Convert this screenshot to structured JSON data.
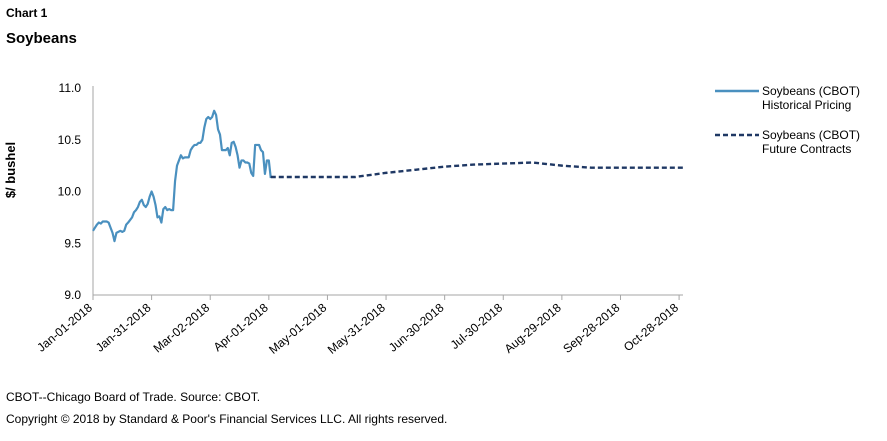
{
  "header": {
    "chart_label": "Chart 1",
    "title": "Soybeans"
  },
  "footer": {
    "source": "CBOT--Chicago Board of Trade. Source: CBOT.",
    "copyright": "Copyright © 2018 by Standard & Poor's Financial Services LLC. All rights reserved."
  },
  "colors": {
    "historical": "#4a90bf",
    "future": "#1f3864",
    "axis": "#a6a6a6"
  },
  "chart_data": {
    "type": "line",
    "title": "Soybeans",
    "ylabel": "$/ bushel",
    "xlabel": "",
    "ylim": [
      9.0,
      11.0
    ],
    "yticks": [
      "9.0",
      "9.5",
      "10.0",
      "10.5",
      "11.0"
    ],
    "xticks": [
      "Jan-01-2018",
      "Jan-31-2018",
      "Mar-02-2018",
      "Apr-01-2018",
      "May-01-2018",
      "May-31-2018",
      "Jun-30-2018",
      "Jul-30-2018",
      "Aug-29-2018",
      "Sep-28-2018",
      "Oct-28-2018"
    ],
    "grid": false,
    "legend": "right",
    "series": [
      {
        "name": "Soybeans (CBOT) Historical Pricing",
        "style": "solid",
        "points": [
          [
            "2018-01-01",
            9.62
          ],
          [
            "2018-01-02",
            9.65
          ],
          [
            "2018-01-03",
            9.68
          ],
          [
            "2018-01-04",
            9.7
          ],
          [
            "2018-01-05",
            9.69
          ],
          [
            "2018-01-06",
            9.71
          ],
          [
            "2018-01-08",
            9.71
          ],
          [
            "2018-01-09",
            9.7
          ],
          [
            "2018-01-10",
            9.65
          ],
          [
            "2018-01-11",
            9.6
          ],
          [
            "2018-01-12",
            9.52
          ],
          [
            "2018-01-13",
            9.6
          ],
          [
            "2018-01-15",
            9.62
          ],
          [
            "2018-01-16",
            9.61
          ],
          [
            "2018-01-17",
            9.62
          ],
          [
            "2018-01-18",
            9.68
          ],
          [
            "2018-01-19",
            9.7
          ],
          [
            "2018-01-21",
            9.75
          ],
          [
            "2018-01-22",
            9.8
          ],
          [
            "2018-01-23",
            9.82
          ],
          [
            "2018-01-24",
            9.85
          ],
          [
            "2018-01-25",
            9.9
          ],
          [
            "2018-01-26",
            9.92
          ],
          [
            "2018-01-27",
            9.87
          ],
          [
            "2018-01-28",
            9.85
          ],
          [
            "2018-01-29",
            9.88
          ],
          [
            "2018-01-30",
            9.95
          ],
          [
            "2018-01-31",
            10.0
          ],
          [
            "2018-02-01",
            9.95
          ],
          [
            "2018-02-02",
            9.87
          ],
          [
            "2018-02-03",
            9.75
          ],
          [
            "2018-02-04",
            9.76
          ],
          [
            "2018-02-05",
            9.7
          ],
          [
            "2018-02-06",
            9.83
          ],
          [
            "2018-02-07",
            9.85
          ],
          [
            "2018-02-08",
            9.82
          ],
          [
            "2018-02-09",
            9.83
          ],
          [
            "2018-02-10",
            9.82
          ],
          [
            "2018-02-11",
            9.82
          ],
          [
            "2018-02-12",
            10.1
          ],
          [
            "2018-02-13",
            10.25
          ],
          [
            "2018-02-14",
            10.3
          ],
          [
            "2018-02-15",
            10.35
          ],
          [
            "2018-02-16",
            10.32
          ],
          [
            "2018-02-17",
            10.33
          ],
          [
            "2018-02-18",
            10.33
          ],
          [
            "2018-02-19",
            10.33
          ],
          [
            "2018-02-20",
            10.4
          ],
          [
            "2018-02-21",
            10.43
          ],
          [
            "2018-02-22",
            10.45
          ],
          [
            "2018-02-23",
            10.45
          ],
          [
            "2018-02-24",
            10.47
          ],
          [
            "2018-02-25",
            10.47
          ],
          [
            "2018-02-26",
            10.5
          ],
          [
            "2018-02-27",
            10.62
          ],
          [
            "2018-02-28",
            10.7
          ],
          [
            "2018-03-01",
            10.72
          ],
          [
            "2018-03-02",
            10.7
          ],
          [
            "2018-03-03",
            10.72
          ],
          [
            "2018-03-04",
            10.78
          ],
          [
            "2018-03-05",
            10.74
          ],
          [
            "2018-03-06",
            10.6
          ],
          [
            "2018-03-07",
            10.55
          ],
          [
            "2018-03-08",
            10.4
          ],
          [
            "2018-03-09",
            10.4
          ],
          [
            "2018-03-10",
            10.4
          ],
          [
            "2018-03-11",
            10.42
          ],
          [
            "2018-03-12",
            10.35
          ],
          [
            "2018-03-13",
            10.47
          ],
          [
            "2018-03-14",
            10.48
          ],
          [
            "2018-03-15",
            10.43
          ],
          [
            "2018-03-16",
            10.35
          ],
          [
            "2018-03-17",
            10.23
          ],
          [
            "2018-03-18",
            10.3
          ],
          [
            "2018-03-19",
            10.3
          ],
          [
            "2018-03-20",
            10.28
          ],
          [
            "2018-03-21",
            10.28
          ],
          [
            "2018-03-22",
            10.27
          ],
          [
            "2018-03-23",
            10.18
          ],
          [
            "2018-03-24",
            10.15
          ],
          [
            "2018-03-25",
            10.45
          ],
          [
            "2018-03-26",
            10.45
          ],
          [
            "2018-03-27",
            10.45
          ],
          [
            "2018-03-28",
            10.4
          ],
          [
            "2018-03-29",
            10.38
          ],
          [
            "2018-03-30",
            10.17
          ],
          [
            "2018-03-31",
            10.3
          ],
          [
            "2018-04-01",
            10.3
          ],
          [
            "2018-04-02",
            10.13
          ]
        ]
      },
      {
        "name": "Soybeans (CBOT) Future Contracts",
        "style": "dashed",
        "points": [
          [
            "2018-04-02",
            10.14
          ],
          [
            "2018-05-01",
            10.14
          ],
          [
            "2018-05-15",
            10.14
          ],
          [
            "2018-05-31",
            10.18
          ],
          [
            "2018-06-15",
            10.21
          ],
          [
            "2018-06-30",
            10.24
          ],
          [
            "2018-07-15",
            10.26
          ],
          [
            "2018-07-30",
            10.27
          ],
          [
            "2018-08-14",
            10.28
          ],
          [
            "2018-08-29",
            10.25
          ],
          [
            "2018-09-13",
            10.23
          ],
          [
            "2018-09-28",
            10.23
          ],
          [
            "2018-10-13",
            10.23
          ],
          [
            "2018-10-30",
            10.23
          ]
        ]
      }
    ]
  },
  "legend": {
    "items": [
      {
        "line1": "Soybeans (CBOT)",
        "line2": "Historical Pricing"
      },
      {
        "line1": "Soybeans (CBOT)",
        "line2": "Future Contracts"
      }
    ]
  }
}
